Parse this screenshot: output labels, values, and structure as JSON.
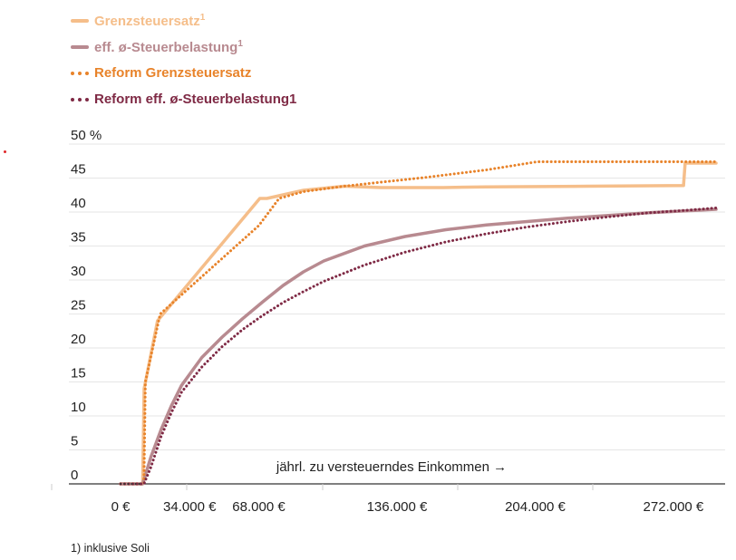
{
  "legend": [
    {
      "label": "Grenzsteuersatz",
      "sup": "1",
      "color": "#f5be8a",
      "style": "solid"
    },
    {
      "label": "eff. ø-Steuerbelastung",
      "sup": "1",
      "color": "#b88a90",
      "style": "solid"
    },
    {
      "label": "Reform Grenzsteuersatz",
      "sup": "",
      "color": "#e8832a",
      "style": "dotted"
    },
    {
      "label": "Reform eff. ø-Steuerbelastung1",
      "sup": "",
      "color": "#7f2a45",
      "style": "dotted"
    }
  ],
  "footnote": "1) inklusive Soli",
  "chart_data": {
    "type": "line",
    "xlabel": "jährl. zu versteuerndes Einkommen →",
    "ylabel": "",
    "xlim": [
      -5000,
      295000
    ],
    "ylim": [
      0,
      50
    ],
    "x_ticks": [
      {
        "value": 0,
        "label": "0 €"
      },
      {
        "value": 34000,
        "label": "34.000 €"
      },
      {
        "value": 68000,
        "label": "68.000 €"
      },
      {
        "value": 136000,
        "label": "136.000 €"
      },
      {
        "value": 204000,
        "label": "204.000 €"
      },
      {
        "value": 272000,
        "label": "272.000 €"
      }
    ],
    "y_ticks": [
      {
        "value": 0,
        "label": "0"
      },
      {
        "value": 5,
        "label": "5"
      },
      {
        "value": 10,
        "label": "10"
      },
      {
        "value": 15,
        "label": "15"
      },
      {
        "value": 20,
        "label": "20"
      },
      {
        "value": 25,
        "label": "25"
      },
      {
        "value": 30,
        "label": "30"
      },
      {
        "value": 35,
        "label": "35"
      },
      {
        "value": 40,
        "label": "40"
      },
      {
        "value": 45,
        "label": "45"
      },
      {
        "value": 50,
        "label": "50 %"
      }
    ],
    "grid": true,
    "series": [
      {
        "name": "Grenzsteuersatz",
        "color": "#f5be8a",
        "style": "solid",
        "x": [
          0,
          10900,
          11600,
          18200,
          68500,
          72000,
          90000,
          110000,
          128000,
          159000,
          180000,
          230000,
          277000,
          277800,
          293000
        ],
        "y": [
          0,
          0,
          14,
          24,
          42,
          42,
          43.2,
          43.8,
          43.6,
          43.6,
          43.7,
          43.8,
          43.9,
          47.2,
          47.2
        ]
      },
      {
        "name": "eff. ø-Steuerbelastung",
        "color": "#b88a90",
        "style": "solid",
        "x": [
          0,
          10900,
          15000,
          20000,
          25000,
          30000,
          40000,
          50000,
          60000,
          70000,
          80000,
          90000,
          100000,
          120000,
          140000,
          160000,
          180000,
          200000,
          220000,
          240000,
          260000,
          280000,
          293000
        ],
        "y": [
          0,
          0,
          4,
          8,
          11.5,
          14.5,
          18.6,
          21.6,
          24.3,
          26.8,
          29.2,
          31.2,
          32.8,
          35,
          36.4,
          37.4,
          38.1,
          38.6,
          39.1,
          39.5,
          39.9,
          40.2,
          40.4
        ]
      },
      {
        "name": "Reform Grenzsteuersatz",
        "color": "#e8832a",
        "style": "dotted",
        "x": [
          0,
          11500,
          12200,
          19500,
          68000,
          78000,
          90000,
          110000,
          125000,
          150000,
          180000,
          205000,
          230000,
          260000,
          293000
        ],
        "y": [
          0,
          0,
          15,
          25,
          38,
          42,
          43,
          43.8,
          44.3,
          45.1,
          46.2,
          47.4,
          47.4,
          47.4,
          47.4
        ]
      },
      {
        "name": "Reform eff. ø-Steuerbelastung",
        "color": "#7f2a45",
        "style": "dotted",
        "x": [
          0,
          11500,
          15000,
          20000,
          25000,
          30000,
          40000,
          50000,
          60000,
          70000,
          80000,
          90000,
          100000,
          120000,
          140000,
          160000,
          180000,
          200000,
          220000,
          240000,
          260000,
          280000,
          293000
        ],
        "y": [
          0,
          0,
          2.5,
          7,
          10.5,
          13.5,
          17.2,
          20.2,
          22.7,
          24.8,
          26.7,
          28.3,
          29.8,
          32.2,
          34.1,
          35.6,
          36.8,
          37.8,
          38.6,
          39.3,
          39.9,
          40.3,
          40.6
        ]
      }
    ]
  }
}
